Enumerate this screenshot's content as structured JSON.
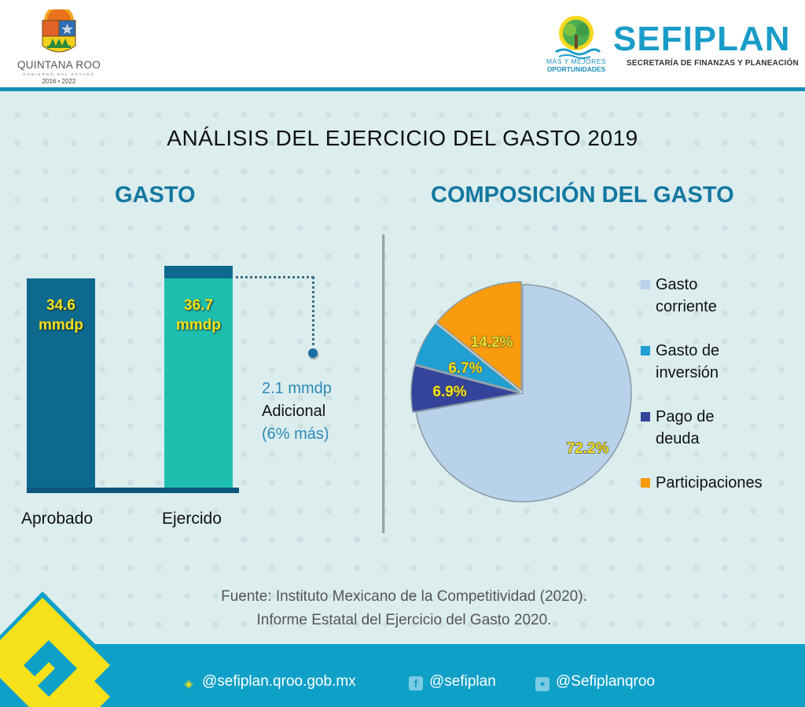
{
  "header": {
    "left_logo": {
      "name": "QUINTANA ROO",
      "subtitle": "GOBIERNO DEL ESTADO",
      "years": "2016 • 2022"
    },
    "right_logo": {
      "slogan_line1": "MÁS Y MEJORES",
      "slogan_line2": "OPORTUNIDADES",
      "name": "SEFIPLAN",
      "subtitle": "SECRETARÍA DE FINANZAS Y PLANEACIÓN"
    }
  },
  "title": "ANÁLISIS DEL EJERCICIO DEL GASTO 2019",
  "colors": {
    "accent": "#1a8fb8",
    "section_title": "#1478a0",
    "bar_aprobado": "#0d6a8e",
    "bar_ejercido": "#1ebfae",
    "bar_extra": "#0d6a8e",
    "label_yellow": "#f3e21a",
    "footer": "#0fa0c8"
  },
  "chart_data": [
    {
      "type": "bar",
      "title": "GASTO",
      "categories": [
        "Aprobado",
        "Ejercido"
      ],
      "values": [
        34.6,
        36.7
      ],
      "unit": "mmdp",
      "data_labels": [
        "34.6 mmdp",
        "36.7 mmdp"
      ],
      "data_label_lines": [
        [
          "34.6",
          "mmdp"
        ],
        [
          "36.7",
          "mmdp"
        ]
      ],
      "annotation": {
        "value": 2.1,
        "line1": "2.1 mmdp",
        "line2": "Adicional",
        "line3": "(6% más)"
      },
      "ylim": [
        0,
        36.7
      ],
      "xlabel": "",
      "ylabel": ""
    },
    {
      "type": "pie",
      "title": "COMPOSICIÓN DEL GASTO",
      "slices": [
        {
          "label": "Gasto corriente",
          "legend_lines": [
            "Gasto",
            "corriente"
          ],
          "value": 72.2,
          "display": "72.2%",
          "color": "#b8d2ea"
        },
        {
          "label": "Pago de deuda",
          "legend_lines": [
            "Pago de",
            "deuda"
          ],
          "value": 6.9,
          "display": "6.9%",
          "color": "#34449a"
        },
        {
          "label": "Gasto de inversión",
          "legend_lines": [
            "Gasto de",
            "inversión"
          ],
          "value": 6.7,
          "display": "6.7%",
          "color": "#1f9fd2"
        },
        {
          "label": "Participaciones",
          "legend_lines": [
            "Participaciones"
          ],
          "value": 14.2,
          "display": "14.2%",
          "color": "#f99b0c"
        }
      ],
      "legend_order": [
        "Gasto corriente",
        "Gasto de inversión",
        "Pago de deuda",
        "Participaciones"
      ],
      "legend_position": "right"
    }
  ],
  "source": {
    "line1": "Fuente: Instituto Mexicano de la Competitividad (2020).",
    "line2": "Informe Estatal del Ejercicio del Gasto 2020."
  },
  "footer": {
    "website": "@sefiplan.qroo.gob.mx",
    "facebook": "@sefiplan",
    "twitter": "@Sefiplanqroo",
    "icons": {
      "website": "diamond-logo-icon",
      "facebook": "facebook-icon",
      "twitter": "twitter-icon"
    }
  }
}
